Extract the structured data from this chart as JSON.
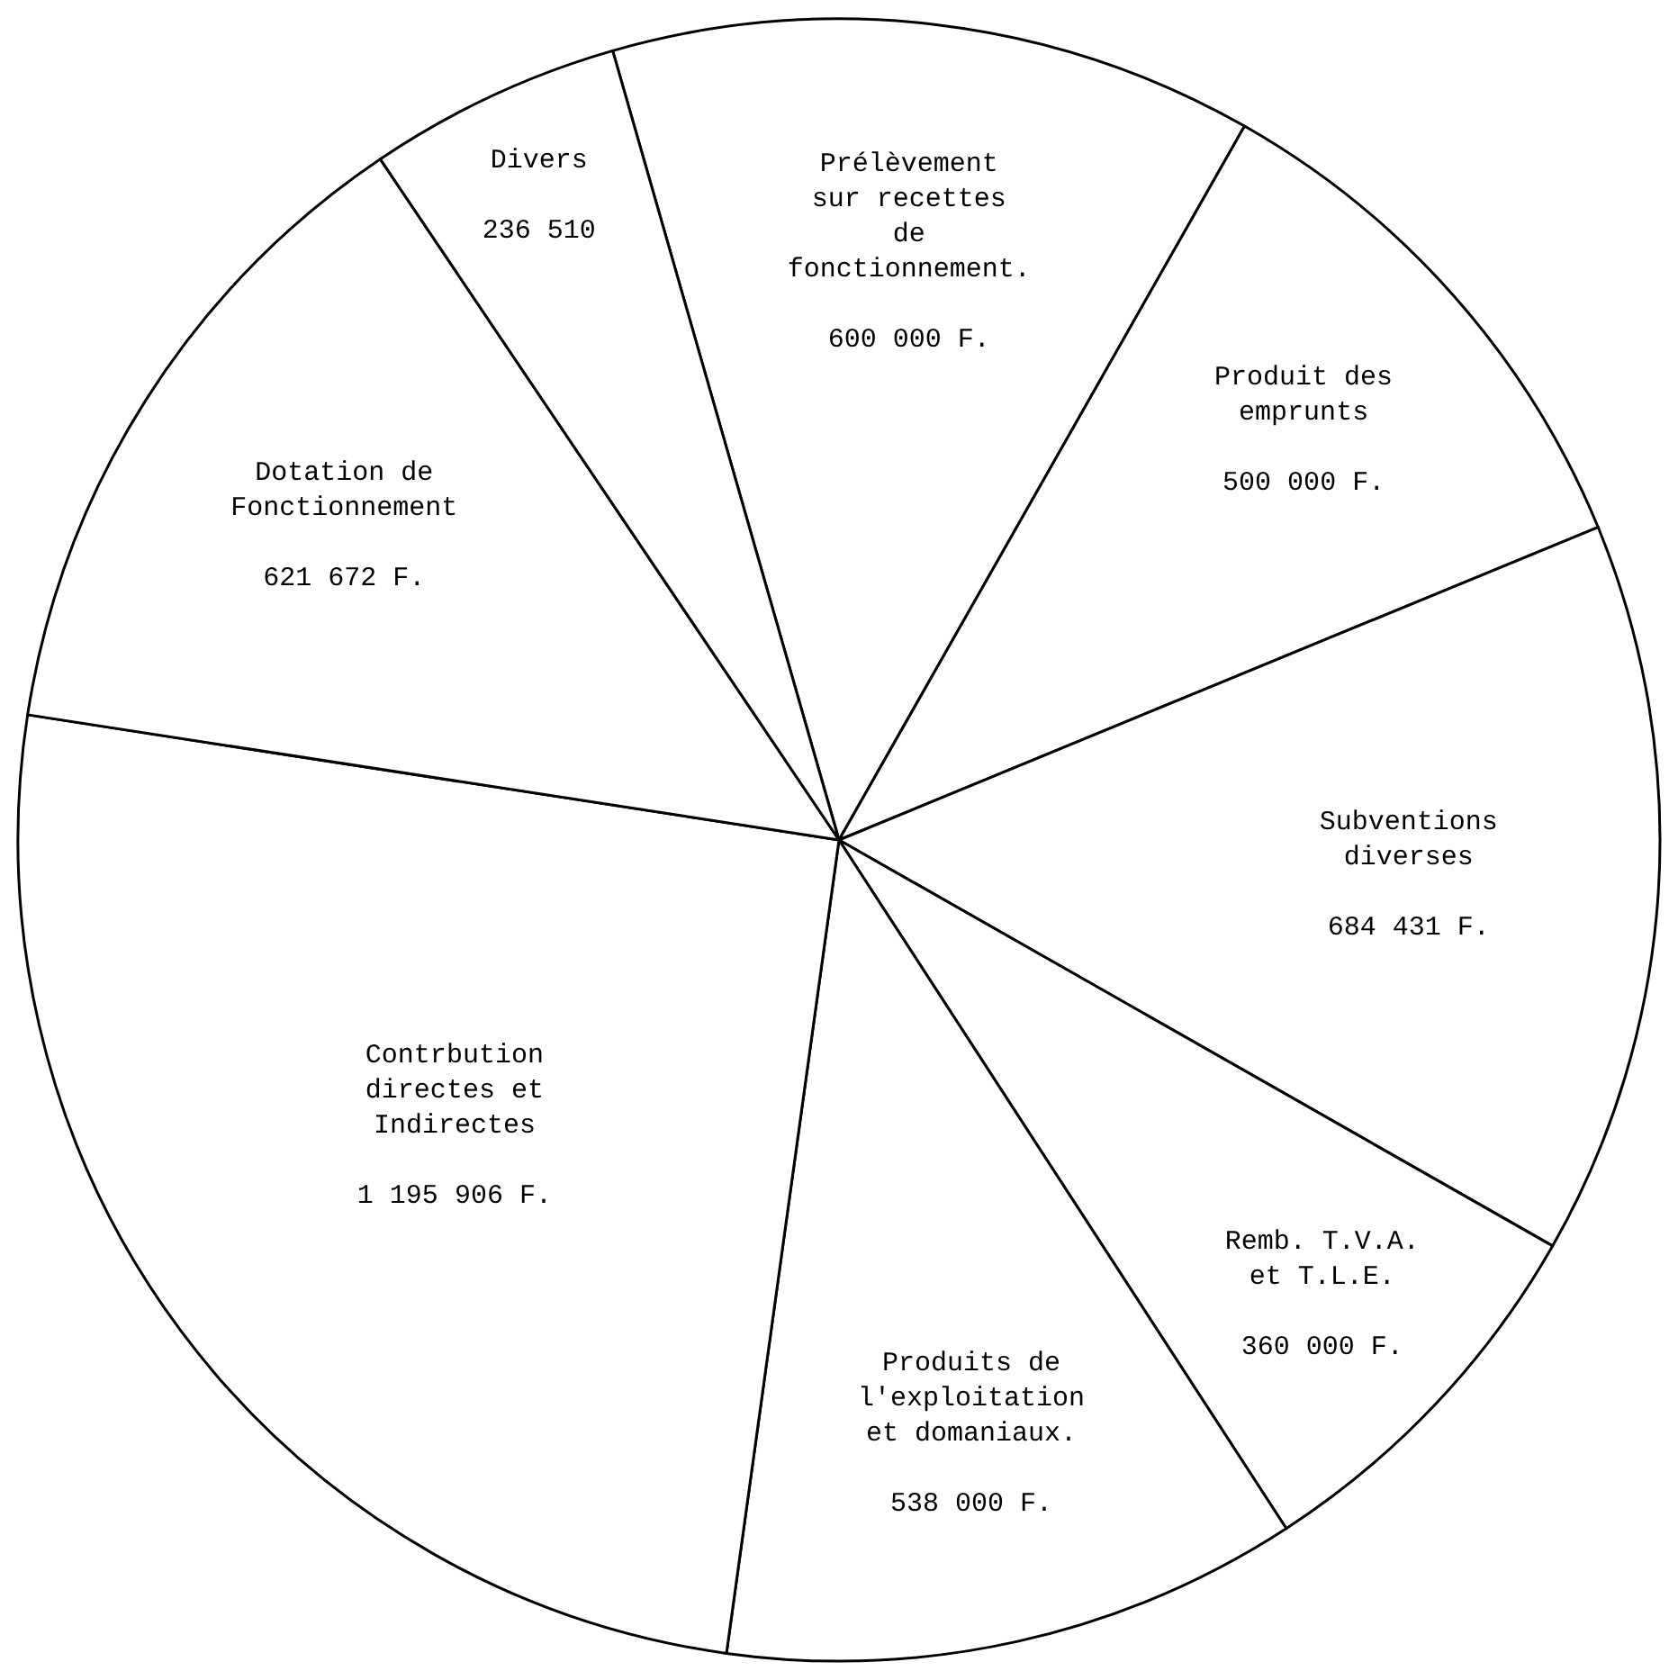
{
  "chart_data": {
    "type": "pie",
    "categories": [
      "Prélèvement sur recettes de fonctionnement.",
      "Produit des emprunts",
      "Subventions diverses",
      "Remb. T.V.A. et T.L.E.",
      "Produits de l'exploitation et domaniaux.",
      "Contrbution directes et Indirectes",
      "Dotation de Fonctionnement",
      "Divers"
    ],
    "values": [
      600000,
      500000,
      684431,
      360000,
      538000,
      1195906,
      621672,
      236510
    ],
    "value_labels": [
      "600 000 F.",
      "500 000 F.",
      "684 431 F.",
      "360 000 F.",
      "538 000 F.",
      "1 195 906 F.",
      "621 672 F.",
      "236 510"
    ],
    "colors": [
      "#ffffff",
      "#ffffff",
      "#ffffff",
      "#ffffff",
      "#ffffff",
      "#ffffff",
      "#ffffff",
      "#ffffff"
    ],
    "legend": false
  }
}
